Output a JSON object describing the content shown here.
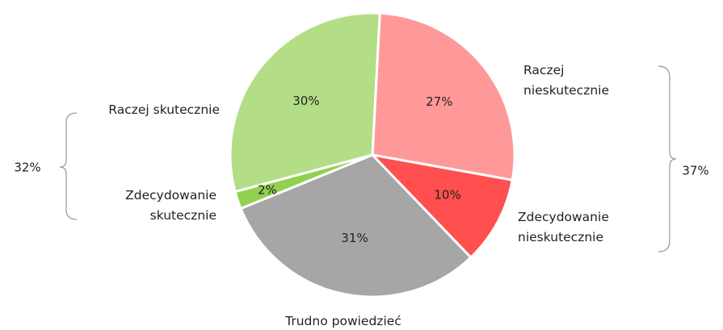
{
  "chart_data": {
    "type": "pie",
    "categories": [
      "Raczej nieskutecznie",
      "Zdecydowanie nieskutecznie",
      "Trudno powiedzieć",
      "Zdecydowanie skutecznie",
      "Raczej skutecznie"
    ],
    "values": [
      27,
      10,
      31,
      2,
      30
    ],
    "value_labels": [
      "27%",
      "10%",
      "31%",
      "2%",
      "30%"
    ],
    "colors": [
      "#ff9999",
      "#ff4f4f",
      "#a6a6a6",
      "#92d050",
      "#b3de86"
    ],
    "groups": [
      {
        "value": 32,
        "label": "32%"
      },
      {
        "value": 37,
        "label": "37%"
      }
    ]
  }
}
